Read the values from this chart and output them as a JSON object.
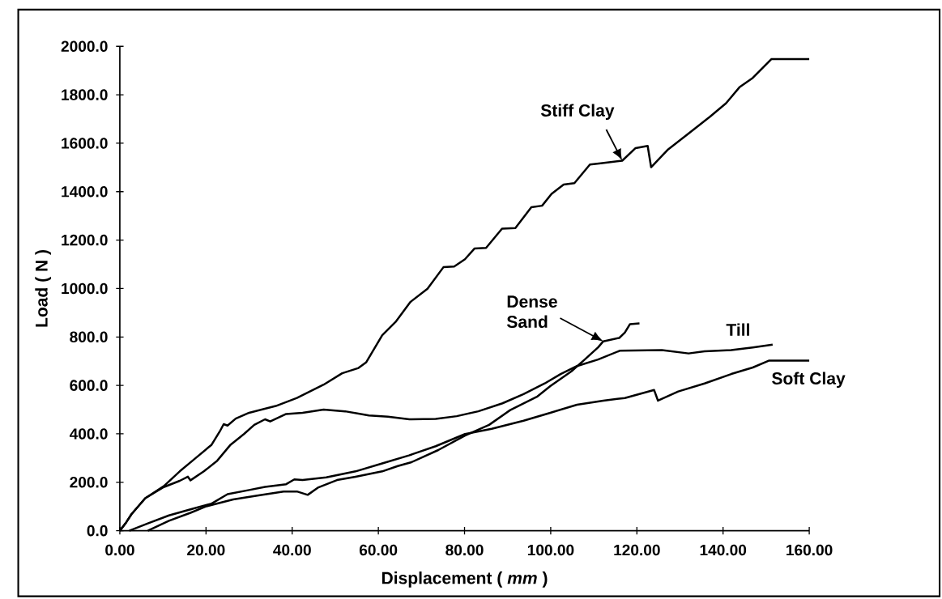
{
  "chart_data": {
    "type": "line",
    "xlabel": "Displacement ( *mm* )",
    "ylabel": "Load ( N )",
    "xlim": [
      0,
      160
    ],
    "ylim": [
      0,
      2000
    ],
    "xticks": [
      {
        "value": 0,
        "label": "0.00"
      },
      {
        "value": 20,
        "label": "20.00"
      },
      {
        "value": 40,
        "label": "40.00"
      },
      {
        "value": 60,
        "label": "60.00"
      },
      {
        "value": 80,
        "label": "80.00"
      },
      {
        "value": 100,
        "label": "100.00"
      },
      {
        "value": 120,
        "label": "120.00"
      },
      {
        "value": 140,
        "label": "140.00"
      },
      {
        "value": 160,
        "label": "160.00"
      }
    ],
    "yticks": [
      {
        "value": 0,
        "label": "0.0"
      },
      {
        "value": 200,
        "label": "200.0"
      },
      {
        "value": 400,
        "label": "400.0"
      },
      {
        "value": 600,
        "label": "600.0"
      },
      {
        "value": 800,
        "label": "800.0"
      },
      {
        "value": 1000,
        "label": "1000.0"
      },
      {
        "value": 1200,
        "label": "1200.0"
      },
      {
        "value": 1400,
        "label": "1400.0"
      },
      {
        "value": 1600,
        "label": "1600.0"
      },
      {
        "value": 1800,
        "label": "1800.0"
      },
      {
        "value": 2000,
        "label": "2000.0"
      }
    ],
    "series": [
      {
        "name": "Stiff Clay",
        "color": "#000000",
        "x": [
          0,
          1.5,
          2.7,
          5.9,
          10.2,
          13.9,
          17.6,
          21.3,
          23.2,
          24.1,
          25.0,
          26.9,
          30.0,
          36.2,
          41.1,
          47.3,
          51.6,
          55.4,
          57.2,
          60.9,
          64.0,
          67.4,
          71.4,
          75.1,
          77.6,
          80.1,
          82.3,
          85.0,
          88.7,
          91.8,
          95.5,
          98.0,
          100.2,
          103.0,
          105.5,
          109.1,
          111.6,
          116.6,
          119.7,
          122.5,
          123.3,
          127.1,
          131.5,
          137.0,
          140.7,
          143.8,
          146.9,
          151.2,
          160
        ],
        "values": [
          0,
          35,
          68,
          134,
          184,
          245,
          300,
          355,
          410,
          440,
          434,
          463,
          487,
          515,
          548,
          603,
          650,
          672,
          696,
          807,
          862,
          944,
          999,
          1088,
          1091,
          1121,
          1165,
          1168,
          1247,
          1250,
          1336,
          1342,
          1391,
          1429,
          1435,
          1512,
          1517,
          1528,
          1580,
          1589,
          1501,
          1572,
          1633,
          1710,
          1765,
          1831,
          1870,
          1947,
          1947
        ]
      },
      {
        "name": "Dense Sand",
        "color": "#000000",
        "x": [
          6.5,
          11.4,
          16.4,
          20.1,
          26.3,
          31.9,
          38.0,
          41.1,
          43.6,
          46.1,
          50.4,
          54.7,
          60.9,
          64.5,
          67.7,
          73.9,
          80.1,
          85.7,
          90.6,
          93.7,
          96.8,
          99.9,
          104.8,
          107.9,
          111.0,
          112.2,
          115.9,
          117.2,
          118.4,
          120.6
        ],
        "values": [
          0,
          41,
          74,
          101,
          129,
          145,
          162,
          162,
          148,
          179,
          209,
          223,
          245,
          267,
          283,
          333,
          393,
          437,
          498,
          526,
          553,
          597,
          658,
          707,
          757,
          782,
          796,
          818,
          853,
          856
        ]
      },
      {
        "name": "Till",
        "color": "#000000",
        "x": [
          0,
          1.5,
          2.7,
          5.9,
          10.2,
          13.9,
          15.8,
          16.4,
          19.5,
          22.6,
          25.7,
          28.8,
          31.2,
          33.7,
          34.9,
          38.6,
          42.4,
          47.3,
          52.3,
          57.8,
          62.2,
          67.2,
          73.3,
          78.2,
          83.2,
          88.8,
          93.7,
          98.6,
          102.3,
          106.1,
          111.0,
          116.0,
          125.8,
          132.0,
          135.7,
          141.9,
          146.9,
          151.5
        ],
        "values": [
          0,
          35,
          68,
          134,
          180,
          206,
          223,
          208,
          245,
          289,
          355,
          399,
          437,
          460,
          451,
          482,
          487,
          500,
          493,
          476,
          471,
          460,
          462,
          473,
          493,
          526,
          564,
          608,
          647,
          680,
          707,
          743,
          746,
          732,
          741,
          746,
          757,
          768
        ]
      },
      {
        "name": "Soft Clay",
        "color": "#000000",
        "x": [
          2.2,
          6.5,
          11.4,
          16.4,
          21.3,
          25.0,
          30.0,
          33.7,
          38.6,
          40.5,
          42.4,
          47.9,
          54.7,
          60.9,
          67.1,
          73.3,
          80.1,
          86.3,
          93.7,
          99.9,
          106.1,
          112.2,
          117.2,
          124.0,
          124.9,
          129.6,
          135.7,
          141.9,
          146.9,
          150.6,
          160
        ],
        "values": [
          0,
          30,
          63,
          88,
          112,
          151,
          168,
          181,
          192,
          212,
          209,
          220,
          245,
          278,
          311,
          349,
          399,
          421,
          454,
          487,
          520,
          537,
          548,
          581,
          537,
          575,
          608,
          647,
          674,
          702,
          702
        ]
      }
    ]
  }
}
